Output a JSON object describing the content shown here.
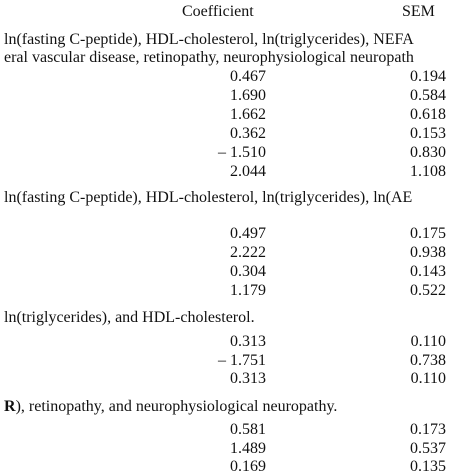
{
  "header": {
    "columns": [
      "Coefficient",
      "SEM"
    ]
  },
  "sections": [
    {
      "label": [
        "ln(fasting C-peptide), HDL-cholesterol, ln(triglycerides), NEFA",
        "eral vascular disease, retinopathy, neurophysiological neuropath"
      ],
      "rows": [
        [
          "0.467",
          "0.194"
        ],
        [
          "1.690",
          "0.584"
        ],
        [
          "1.662",
          "0.618"
        ],
        [
          "0.362",
          "0.153"
        ],
        [
          "– 1.510",
          "0.830"
        ],
        [
          "2.044",
          "1.108"
        ]
      ]
    },
    {
      "label": [
        "ln(fasting C-peptide), HDL-cholesterol, ln(triglycerides), ln(AE"
      ],
      "rows": [
        [
          "0.497",
          "0.175"
        ],
        [
          "2.222",
          "0.938"
        ],
        [
          "0.304",
          "0.143"
        ],
        [
          "1.179",
          "0.522"
        ]
      ]
    },
    {
      "label": [
        "ln(triglycerides), and HDL-cholesterol."
      ],
      "rows": [
        [
          "0.313",
          "0.110"
        ],
        [
          "– 1.751",
          "0.738"
        ],
        [
          "0.313",
          "0.110"
        ]
      ]
    },
    {
      "label_bold": "R",
      "label": [
        "), retinopathy, and neurophysiological neuropathy."
      ],
      "rows": [
        [
          "0.581",
          "0.173"
        ],
        [
          "1.489",
          "0.537"
        ],
        [
          "0.169",
          "0.135"
        ]
      ]
    }
  ]
}
